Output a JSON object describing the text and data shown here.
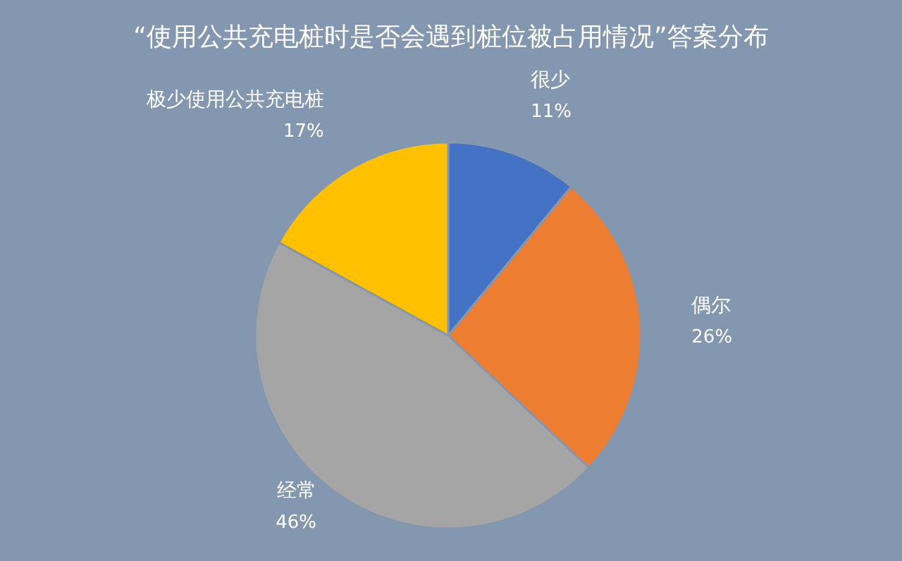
{
  "chart_data": {
    "type": "pie",
    "title": "“使用公共充电桩时是否会遇到桩位被占用情况”答案分布",
    "categories": [
      "很少",
      "偶尔",
      "经常",
      "极少使用公共充电桩"
    ],
    "values": [
      11,
      26,
      46,
      17
    ],
    "value_labels": [
      "11%",
      "26%",
      "46%",
      "17%"
    ],
    "colors": [
      "#4472c4",
      "#ed7d31",
      "#a5a5a5",
      "#ffc000"
    ]
  }
}
